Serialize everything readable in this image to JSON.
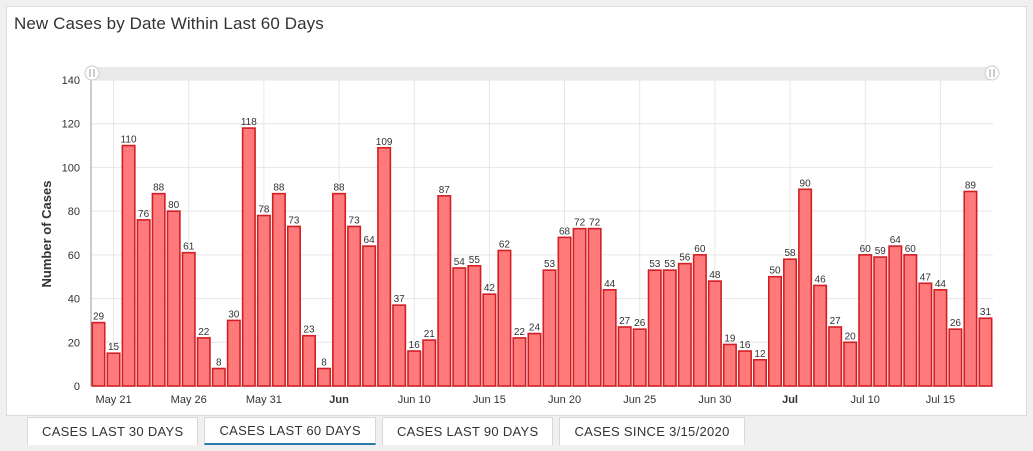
{
  "title": "New Cases by Date Within Last 60 Days",
  "tabs": [
    {
      "label": "CASES LAST 30 DAYS",
      "active": false
    },
    {
      "label": "CASES LAST 60 DAYS",
      "active": true
    },
    {
      "label": "CASES LAST 90 DAYS",
      "active": false
    },
    {
      "label": "CASES SINCE 3/15/2020",
      "active": false
    }
  ],
  "chart_data": {
    "type": "bar",
    "title": "New Cases by Date Within Last 60 Days",
    "xlabel": "",
    "ylabel": "Number of Cases",
    "ylim": [
      0,
      140
    ],
    "yticks": [
      0,
      20,
      40,
      60,
      80,
      100,
      120,
      140
    ],
    "grid": true,
    "x_start": "May 20",
    "x_end": "Jul 19",
    "categories": [
      "May 20",
      "May 21",
      "May 22",
      "May 23",
      "May 24",
      "May 25",
      "May 26",
      "May 27",
      "May 28",
      "May 29",
      "May 30",
      "May 31",
      "Jun 1",
      "Jun 2",
      "Jun 3",
      "Jun 4",
      "Jun 5",
      "Jun 6",
      "Jun 7",
      "Jun 8",
      "Jun 9",
      "Jun 10",
      "Jun 11",
      "Jun 12",
      "Jun 13",
      "Jun 14",
      "Jun 15",
      "Jun 16",
      "Jun 17",
      "Jun 18",
      "Jun 19",
      "Jun 20",
      "Jun 21",
      "Jun 22",
      "Jun 23",
      "Jun 24",
      "Jun 25",
      "Jun 26",
      "Jun 27",
      "Jun 28",
      "Jun 29",
      "Jun 30",
      "Jul 1",
      "Jul 2",
      "Jul 3",
      "Jul 4",
      "Jul 5",
      "Jul 6",
      "Jul 7",
      "Jul 8",
      "Jul 9",
      "Jul 10",
      "Jul 11",
      "Jul 12",
      "Jul 13",
      "Jul 14",
      "Jul 15",
      "Jul 16",
      "Jul 17",
      "Jul 18"
    ],
    "values": [
      29,
      15,
      110,
      76,
      88,
      80,
      61,
      22,
      8,
      30,
      118,
      78,
      88,
      73,
      23,
      8,
      88,
      73,
      64,
      109,
      37,
      16,
      21,
      87,
      54,
      55,
      42,
      62,
      22,
      24,
      53,
      68,
      72,
      72,
      44,
      27,
      26,
      53,
      53,
      56,
      60,
      48,
      19,
      16,
      12,
      50,
      58,
      90,
      46,
      27,
      20,
      60,
      59,
      64,
      60,
      47,
      44,
      26,
      89,
      31
    ],
    "xtick_labels": [
      {
        "label": "May 21",
        "bold": false
      },
      {
        "label": "May 26",
        "bold": false
      },
      {
        "label": "May 31",
        "bold": false
      },
      {
        "label": "Jun",
        "bold": true
      },
      {
        "label": "Jun 10",
        "bold": false
      },
      {
        "label": "Jun 15",
        "bold": false
      },
      {
        "label": "Jun 20",
        "bold": false
      },
      {
        "label": "Jun 25",
        "bold": false
      },
      {
        "label": "Jun 30",
        "bold": false
      },
      {
        "label": "Jul",
        "bold": true
      },
      {
        "label": "Jul 10",
        "bold": false
      },
      {
        "label": "Jul 15",
        "bold": false
      }
    ],
    "colors": {
      "bar_fill": "#ff7b7b",
      "bar_stroke": "#d21f26",
      "grid": "#e6e6e6",
      "axis": "#999999"
    }
  }
}
